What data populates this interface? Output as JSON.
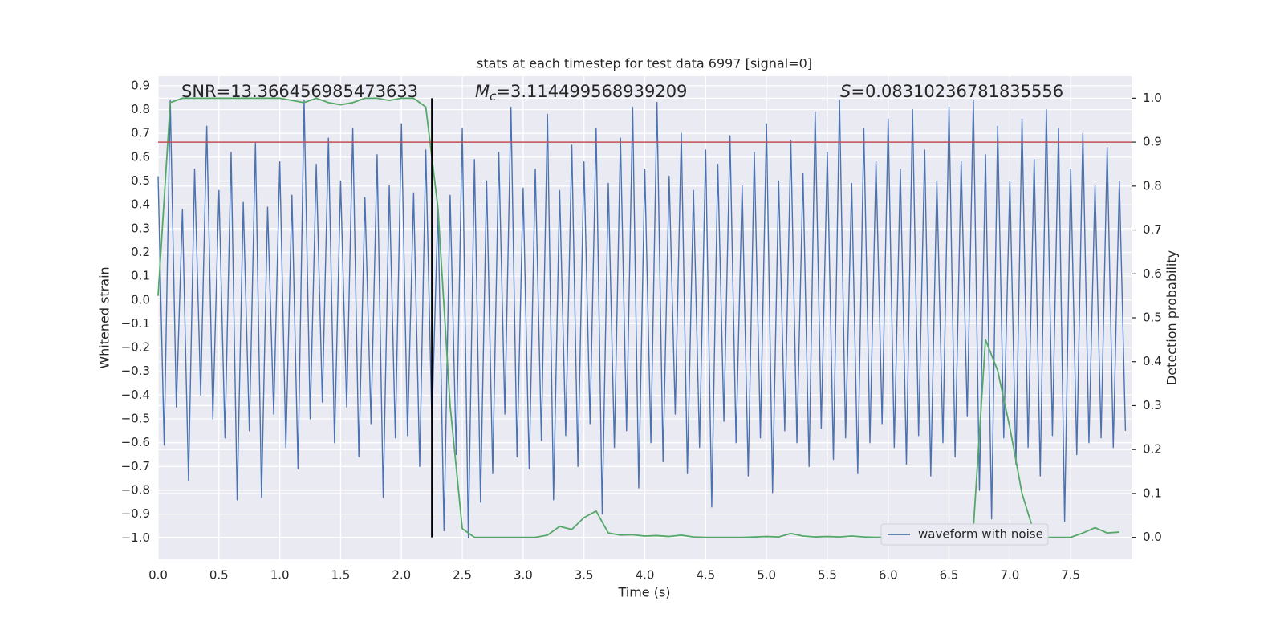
{
  "chart_data": {
    "type": "line",
    "title": "stats at each timestep for test data 6997 [signal=0]",
    "xlabel": "Time (s)",
    "ylabel": "Whitened strain",
    "y2label": "Detection probability",
    "annotations": {
      "snr": "SNR=13.366456985473633",
      "mc": {
        "symbol": "M",
        "subscript": "c",
        "text": "=3.114499568939209"
      },
      "s": {
        "symbol": "S",
        "text": "=0.08310236781835556"
      }
    },
    "xlim": [
      0,
      8.0
    ],
    "ylim": [
      -1.09,
      0.94
    ],
    "y2lim": [
      -0.05,
      1.05
    ],
    "xticks": [
      {
        "value": 0,
        "label": "0.0"
      },
      {
        "value": 0.5,
        "label": "0.5"
      },
      {
        "value": 1,
        "label": "1.0"
      },
      {
        "value": 1.5,
        "label": "1.5"
      },
      {
        "value": 2,
        "label": "2.0"
      },
      {
        "value": 2.5,
        "label": "2.5"
      },
      {
        "value": 3,
        "label": "3.0"
      },
      {
        "value": 3.5,
        "label": "3.5"
      },
      {
        "value": 4,
        "label": "4.0"
      },
      {
        "value": 4.5,
        "label": "4.5"
      },
      {
        "value": 5,
        "label": "5.0"
      },
      {
        "value": 5.5,
        "label": "5.5"
      },
      {
        "value": 6,
        "label": "6.0"
      },
      {
        "value": 6.5,
        "label": "6.5"
      },
      {
        "value": 7,
        "label": "7.0"
      },
      {
        "value": 7.5,
        "label": "7.5"
      }
    ],
    "yticks": [
      {
        "value": -1,
        "label": "−1.0"
      },
      {
        "value": -0.9,
        "label": "−0.9"
      },
      {
        "value": -0.8,
        "label": "−0.8"
      },
      {
        "value": -0.7,
        "label": "−0.7"
      },
      {
        "value": -0.6,
        "label": "−0.6"
      },
      {
        "value": -0.5,
        "label": "−0.5"
      },
      {
        "value": -0.4,
        "label": "−0.4"
      },
      {
        "value": -0.3,
        "label": "−0.3"
      },
      {
        "value": -0.2,
        "label": "−0.2"
      },
      {
        "value": -0.1,
        "label": "−0.1"
      },
      {
        "value": 0,
        "label": "0.0"
      },
      {
        "value": 0.1,
        "label": "0.1"
      },
      {
        "value": 0.2,
        "label": "0.2"
      },
      {
        "value": 0.3,
        "label": "0.3"
      },
      {
        "value": 0.4,
        "label": "0.4"
      },
      {
        "value": 0.5,
        "label": "0.5"
      },
      {
        "value": 0.6,
        "label": "0.6"
      },
      {
        "value": 0.7,
        "label": "0.7"
      },
      {
        "value": 0.8,
        "label": "0.8"
      },
      {
        "value": 0.9,
        "label": "0.9"
      }
    ],
    "y2ticks": [
      {
        "value": 0,
        "label": "0.0"
      },
      0.1,
      0.2,
      0.3,
      0.4,
      0.5,
      0.6,
      0.7,
      0.8,
      0.9,
      {
        "value": 1,
        "label": "1.0"
      }
    ],
    "grid": true,
    "legend": "lower right",
    "series": [
      {
        "name": "waveform with noise",
        "color": "#4c72b0",
        "x": [
          0,
          0.05,
          0.1,
          0.15,
          0.2,
          0.25,
          0.3,
          0.35,
          0.4,
          0.45,
          0.5,
          0.55,
          0.6,
          0.65,
          0.7,
          0.75,
          0.8,
          0.85,
          0.9,
          0.95,
          1,
          1.05,
          1.1,
          1.15,
          1.2,
          1.25,
          1.3,
          1.35,
          1.4,
          1.45,
          1.5,
          1.55,
          1.6,
          1.65,
          1.7,
          1.75,
          1.8,
          1.85,
          1.9,
          1.95,
          2,
          2.05,
          2.1,
          2.15,
          2.2,
          2.25,
          2.3,
          2.35,
          2.4,
          2.45,
          2.5,
          2.55,
          2.6,
          2.65,
          2.7,
          2.75,
          2.8,
          2.85,
          2.9,
          2.95,
          3,
          3.05,
          3.1,
          3.15,
          3.2,
          3.25,
          3.3,
          3.35,
          3.4,
          3.45,
          3.5,
          3.55,
          3.6,
          3.65,
          3.7,
          3.75,
          3.8,
          3.85,
          3.9,
          3.95,
          4,
          4.05,
          4.1,
          4.15,
          4.2,
          4.25,
          4.3,
          4.35,
          4.4,
          4.45,
          4.5,
          4.55,
          4.6,
          4.65,
          4.7,
          4.75,
          4.8,
          4.85,
          4.9,
          4.95,
          5,
          5.05,
          5.1,
          5.15,
          5.2,
          5.25,
          5.3,
          5.35,
          5.4,
          5.45,
          5.5,
          5.55,
          5.6,
          5.65,
          5.7,
          5.75,
          5.8,
          5.85,
          5.9,
          5.95,
          6,
          6.05,
          6.1,
          6.15,
          6.2,
          6.25,
          6.3,
          6.35,
          6.4,
          6.45,
          6.5,
          6.55,
          6.6,
          6.65,
          6.7,
          6.75,
          6.8,
          6.85,
          6.9,
          6.95,
          7,
          7.05,
          7.1,
          7.15,
          7.2,
          7.25,
          7.3,
          7.35,
          7.4,
          7.45,
          7.5,
          7.55,
          7.6,
          7.65,
          7.7,
          7.75,
          7.8,
          7.85,
          7.9,
          7.95
        ],
        "values": [
          0.52,
          -0.61,
          0.84,
          -0.45,
          0.38,
          -0.76,
          0.55,
          -0.4,
          0.73,
          -0.5,
          0.46,
          -0.58,
          0.62,
          -0.84,
          0.41,
          -0.55,
          0.66,
          -0.83,
          0.39,
          -0.48,
          0.58,
          -0.62,
          0.44,
          -0.71,
          0.84,
          -0.5,
          0.57,
          -0.43,
          0.68,
          -0.6,
          0.5,
          -0.45,
          0.72,
          -0.66,
          0.43,
          -0.52,
          0.61,
          -0.83,
          0.48,
          -0.58,
          0.74,
          -0.57,
          0.45,
          -0.7,
          0.63,
          -0.52,
          0.39,
          -0.97,
          0.44,
          -0.65,
          0.72,
          -1.0,
          0.59,
          -0.85,
          0.5,
          -0.73,
          0.62,
          -0.48,
          0.81,
          -0.66,
          0.47,
          -0.71,
          0.55,
          -0.59,
          0.78,
          -0.84,
          0.46,
          -0.57,
          0.65,
          -0.7,
          0.58,
          -0.52,
          0.72,
          -0.9,
          0.49,
          -0.62,
          0.68,
          -0.55,
          0.81,
          -0.79,
          0.55,
          -0.6,
          0.83,
          -0.68,
          0.52,
          -0.48,
          0.7,
          -0.73,
          0.46,
          -0.62,
          0.63,
          -0.87,
          0.57,
          -0.51,
          0.69,
          -0.6,
          0.48,
          -0.74,
          0.62,
          -0.58,
          0.74,
          -0.81,
          0.5,
          -0.55,
          0.67,
          -0.6,
          0.53,
          -0.7,
          0.79,
          -0.54,
          0.62,
          -0.67,
          0.84,
          -0.58,
          0.49,
          -0.73,
          0.72,
          -0.6,
          0.58,
          -0.52,
          0.76,
          -0.62,
          0.55,
          -0.69,
          0.8,
          -0.57,
          0.63,
          -0.74,
          0.5,
          -0.6,
          0.81,
          -0.66,
          0.58,
          -0.49,
          0.84,
          -0.8,
          0.61,
          -0.92,
          0.73,
          -0.58,
          0.5,
          -0.69,
          0.76,
          -0.62,
          0.59,
          -0.74,
          0.8,
          -0.57,
          0.72,
          -0.93,
          0.55,
          -0.65,
          0.7,
          -0.6,
          0.48,
          -0.58,
          0.64,
          -0.62,
          0.5,
          -0.55
        ]
      },
      {
        "color": "#55a868",
        "axis": "y2",
        "x": [
          0,
          0.1,
          0.2,
          0.3,
          0.4,
          0.5,
          0.6,
          0.7,
          0.8,
          0.9,
          1,
          1.1,
          1.2,
          1.3,
          1.4,
          1.5,
          1.6,
          1.7,
          1.8,
          1.9,
          2,
          2.1,
          2.2,
          2.3,
          2.4,
          2.5,
          2.6,
          2.7,
          2.8,
          2.9,
          3,
          3.1,
          3.2,
          3.3,
          3.4,
          3.5,
          3.6,
          3.7,
          3.8,
          3.9,
          4,
          4.1,
          4.2,
          4.3,
          4.4,
          4.5,
          4.6,
          4.7,
          4.8,
          4.9,
          5,
          5.1,
          5.2,
          5.3,
          5.4,
          5.5,
          5.6,
          5.7,
          5.8,
          5.9,
          6,
          6.1,
          6.2,
          6.3,
          6.4,
          6.5,
          6.6,
          6.7,
          6.8,
          6.9,
          7,
          7.1,
          7.2,
          7.3,
          7.4,
          7.5,
          7.6,
          7.7,
          7.8,
          7.9
        ],
        "values": [
          0.55,
          0.99,
          1.0,
          1.0,
          1.0,
          1.0,
          1.0,
          1.0,
          1.0,
          1.0,
          1.0,
          0.995,
          0.99,
          1.0,
          0.99,
          0.985,
          0.99,
          1.0,
          1.0,
          0.995,
          1.0,
          1.0,
          0.98,
          0.75,
          0.3,
          0.02,
          0.0,
          0.0,
          0.0,
          0.0,
          0.0,
          0.0,
          0.005,
          0.025,
          0.018,
          0.045,
          0.06,
          0.01,
          0.005,
          0.006,
          0.003,
          0.004,
          0.002,
          0.005,
          0.001,
          0.0,
          0.0,
          0.0,
          0.0,
          0.001,
          0.002,
          0.001,
          0.009,
          0.003,
          0.001,
          0.002,
          0.001,
          0.003,
          0.001,
          0.0,
          0.001,
          0.0,
          0.0,
          0.001,
          0.002,
          0.006,
          0.008,
          0.02,
          0.45,
          0.38,
          0.25,
          0.1,
          0.01,
          0.0,
          0.0,
          0.0,
          0.01,
          0.022,
          0.01,
          0.012
        ]
      }
    ],
    "hlines": [
      {
        "y": 0.9,
        "axis": "y2",
        "color": "#c44e52"
      }
    ],
    "vlines": [
      {
        "x": 2.25,
        "ymin": 0,
        "ymax": 1,
        "axis": "y2",
        "color": "#000000"
      }
    ]
  }
}
